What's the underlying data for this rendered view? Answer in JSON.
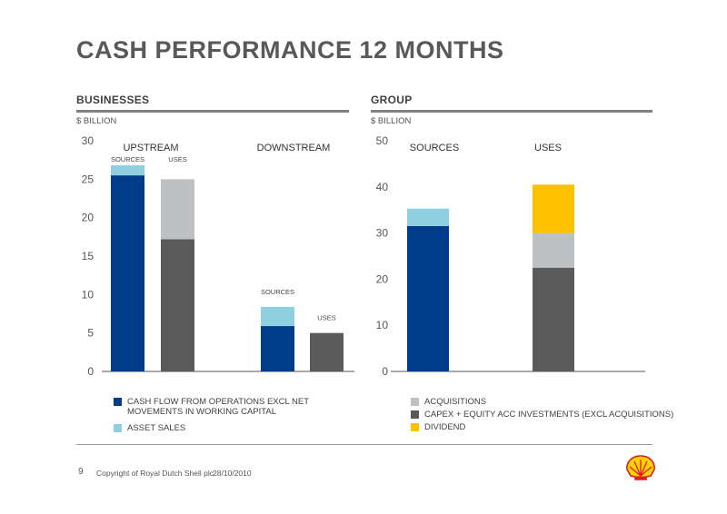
{
  "title": "CASH PERFORMANCE 12 MONTHS",
  "panels": {
    "businesses": {
      "title": "BUSINESSES",
      "unit": "$ BILLION"
    },
    "group": {
      "title": "GROUP",
      "unit": "$ BILLION"
    }
  },
  "colors": {
    "cash_flow": "#003C8A",
    "asset_sales": "#8ECFE0",
    "acquisitions": "#BEC1C4",
    "capex": "#5A5A5A",
    "dividend": "#FFC000"
  },
  "chart_data": [
    {
      "type": "bar",
      "stacked": true,
      "unit": "$ BILLION",
      "ylim": [
        0,
        30
      ],
      "yticks": [
        "0",
        "5",
        "10",
        "15",
        "20",
        "25",
        "30"
      ],
      "groups": [
        {
          "label": "UPSTREAM",
          "bars": [
            {
              "label": "SOURCES",
              "segments": [
                {
                  "series": "CASH FLOW FROM OPERATIONS EXCL NET MOVEMENTS IN WORKING CAPITAL",
                  "value": 25.5
                },
                {
                  "series": "ASSET SALES",
                  "value": 1.3
                }
              ]
            },
            {
              "label": "USES",
              "segments": [
                {
                  "series": "CAPEX + EQUITY ACC INVESTMENTS (EXCL ACQUISITIONS)",
                  "value": 17.2
                },
                {
                  "series": "ACQUISITIONS",
                  "value": 7.8
                }
              ]
            }
          ]
        },
        {
          "label": "DOWNSTREAM",
          "bars": [
            {
              "label": "SOURCES",
              "segments": [
                {
                  "series": "CASH FLOW FROM OPERATIONS EXCL NET MOVEMENTS IN WORKING CAPITAL",
                  "value": 5.9
                },
                {
                  "series": "ASSET SALES",
                  "value": 2.5
                }
              ]
            },
            {
              "label": "USES",
              "segments": [
                {
                  "series": "CAPEX + EQUITY ACC INVESTMENTS (EXCL ACQUISITIONS)",
                  "value": 5.0
                }
              ]
            }
          ]
        }
      ]
    },
    {
      "type": "bar",
      "stacked": true,
      "unit": "$ BILLION",
      "ylim": [
        0,
        50
      ],
      "yticks": [
        "0",
        "10",
        "20",
        "30",
        "40",
        "50"
      ],
      "bars": [
        {
          "label": "SOURCES",
          "segments": [
            {
              "series": "CASH FLOW FROM OPERATIONS EXCL NET MOVEMENTS IN WORKING CAPITAL",
              "value": 31.5
            },
            {
              "series": "ASSET SALES",
              "value": 3.8
            }
          ]
        },
        {
          "label": "USES",
          "segments": [
            {
              "series": "CAPEX + EQUITY ACC INVESTMENTS (EXCL ACQUISITIONS)",
              "value": 22.5
            },
            {
              "series": "ACQUISITIONS",
              "value": 7.5
            },
            {
              "series": "DIVIDEND",
              "value": 10.5
            }
          ]
        }
      ]
    }
  ],
  "legend": [
    {
      "label": "CASH FLOW FROM OPERATIONS EXCL NET MOVEMENTS IN WORKING CAPITAL",
      "color": "#003C8A"
    },
    {
      "label": "ASSET SALES",
      "color": "#8ECFE0"
    },
    {
      "label": "ACQUISITIONS",
      "color": "#BEC1C4"
    },
    {
      "label": "CAPEX + EQUITY ACC INVESTMENTS (EXCL ACQUISITIONS)",
      "color": "#5A5A5A"
    },
    {
      "label": "DIVIDEND",
      "color": "#FFC000"
    }
  ],
  "footer": {
    "page": "9",
    "copyright": "Copyright of Royal Dutch Shell plc",
    "date": "28/10/2010",
    "logo": "shell-pecten-logo"
  }
}
